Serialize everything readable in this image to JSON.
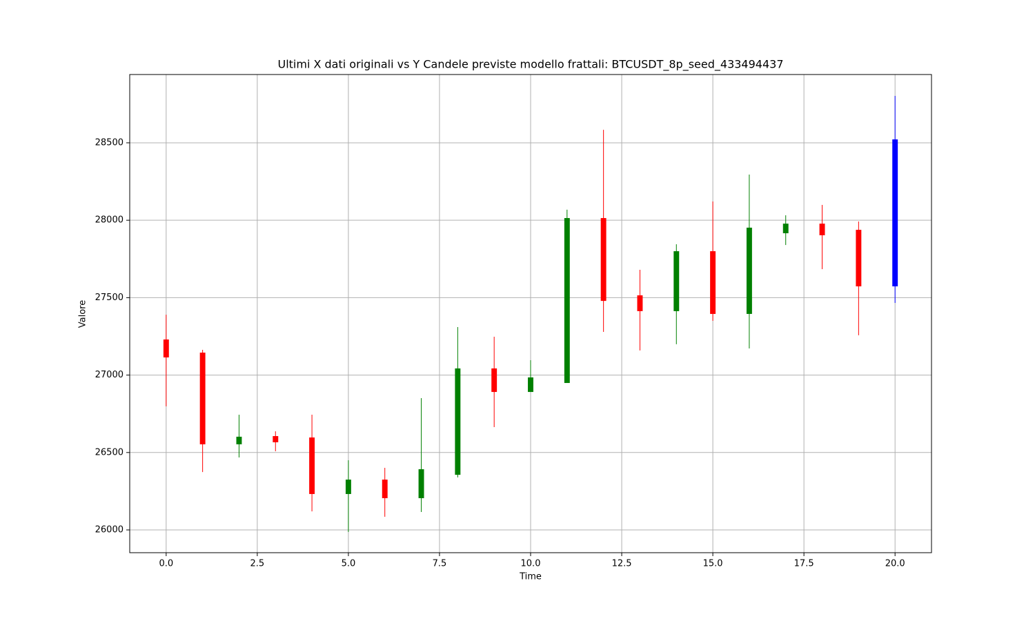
{
  "chart_data": {
    "type": "candlestick",
    "title": "Ultimi X dati originali vs Y Candele previste modello frattali: BTCUSDT_8p_seed_433494437",
    "x_label": "Time",
    "y_label": "Valore",
    "x": [
      0,
      1,
      2,
      3,
      4,
      5,
      6,
      7,
      8,
      9,
      10,
      11,
      12,
      13,
      14,
      15,
      16,
      17,
      18,
      19,
      20
    ],
    "open": [
      27230,
      27145,
      26553,
      26606,
      26597,
      26232,
      26325,
      26205,
      26356,
      27043,
      26891,
      26949,
      28014,
      27515,
      27413,
      27800,
      27395,
      27916,
      27978,
      27938,
      27573
    ],
    "high": [
      27390,
      27163,
      26744,
      26637,
      26744,
      26450,
      26401,
      26851,
      27310,
      27248,
      27096,
      28068,
      28584,
      27680,
      27845,
      28121,
      28295,
      28032,
      28099,
      27992,
      28803
    ],
    "low": [
      26798,
      26374,
      26468,
      26508,
      26120,
      25987,
      26085,
      26116,
      26339,
      26664,
      26891,
      26949,
      27279,
      27159,
      27199,
      27350,
      27172,
      27840,
      27684,
      27257,
      27466
    ],
    "close": [
      27114,
      26553,
      26602,
      26566,
      26232,
      26325,
      26205,
      26392,
      27043,
      26891,
      26985,
      28014,
      27479,
      27413,
      27800,
      27395,
      27952,
      27978,
      27903,
      27573,
      28522
    ],
    "colors": [
      "red",
      "red",
      "green",
      "red",
      "red",
      "green",
      "red",
      "green",
      "green",
      "red",
      "green",
      "green",
      "red",
      "red",
      "green",
      "red",
      "green",
      "green",
      "red",
      "red",
      "blue"
    ],
    "xlim": [
      -1,
      21
    ],
    "ylim": [
      25853,
      28941
    ],
    "xticks": [
      {
        "value": 0,
        "label": "0.0"
      },
      2.5,
      {
        "value": 5,
        "label": "5.0"
      },
      7.5,
      {
        "value": 10,
        "label": "10.0"
      },
      12.5,
      {
        "value": 15,
        "label": "15.0"
      },
      17.5,
      {
        "value": 20,
        "label": "20.0"
      }
    ],
    "yticks": [
      26000,
      26500,
      27000,
      27500,
      28000,
      28500
    ],
    "grid": true
  }
}
